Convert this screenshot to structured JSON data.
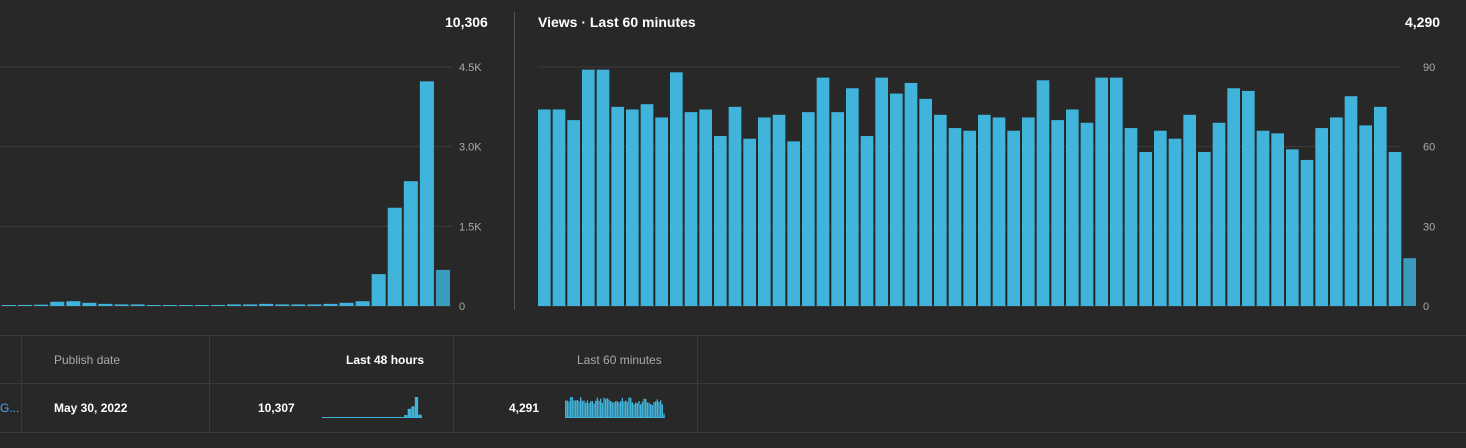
{
  "panel_48h": {
    "total": "10,306"
  },
  "panel_60m": {
    "title": "Views · Last 60 minutes",
    "total": "4,290"
  },
  "chart_data": [
    {
      "type": "bar",
      "name": "views-48h",
      "title": "",
      "ylim": [
        0,
        4500
      ],
      "yticks": [
        "0",
        "1.5K",
        "3.0K",
        "4.5K"
      ],
      "ytick_values": [
        0,
        1500,
        3000,
        4500
      ],
      "values": [
        15,
        20,
        25,
        80,
        90,
        60,
        40,
        30,
        30,
        15,
        15,
        15,
        15,
        20,
        30,
        30,
        40,
        30,
        30,
        30,
        40,
        60,
        90,
        600,
        1850,
        2350,
        4230,
        680
      ],
      "grid": true
    },
    {
      "type": "bar",
      "name": "views-60m",
      "title": "Views · Last 60 minutes",
      "ylim": [
        0,
        90
      ],
      "yticks": [
        "0",
        "30",
        "60",
        "90"
      ],
      "ytick_values": [
        0,
        30,
        60,
        90
      ],
      "values": [
        74,
        74,
        70,
        89,
        89,
        75,
        74,
        76,
        71,
        88,
        73,
        74,
        64,
        75,
        63,
        71,
        72,
        62,
        73,
        86,
        73,
        82,
        64,
        86,
        80,
        84,
        78,
        72,
        67,
        66,
        72,
        71,
        66,
        71,
        85,
        70,
        74,
        69,
        86,
        86,
        67,
        58,
        66,
        63,
        72,
        58,
        69,
        82,
        81,
        66,
        65,
        59,
        55,
        67,
        71,
        79,
        68,
        75,
        58,
        18
      ],
      "grid": true
    }
  ],
  "table": {
    "headers": {
      "publish_date": "Publish date",
      "last_48h": "Last 48 hours",
      "last_60m": "Last 60 minutes"
    },
    "row": {
      "truncated_link": "G...",
      "publish_date": "May 30, 2022",
      "views_48h": "10,307",
      "views_60m": "4,291"
    }
  }
}
